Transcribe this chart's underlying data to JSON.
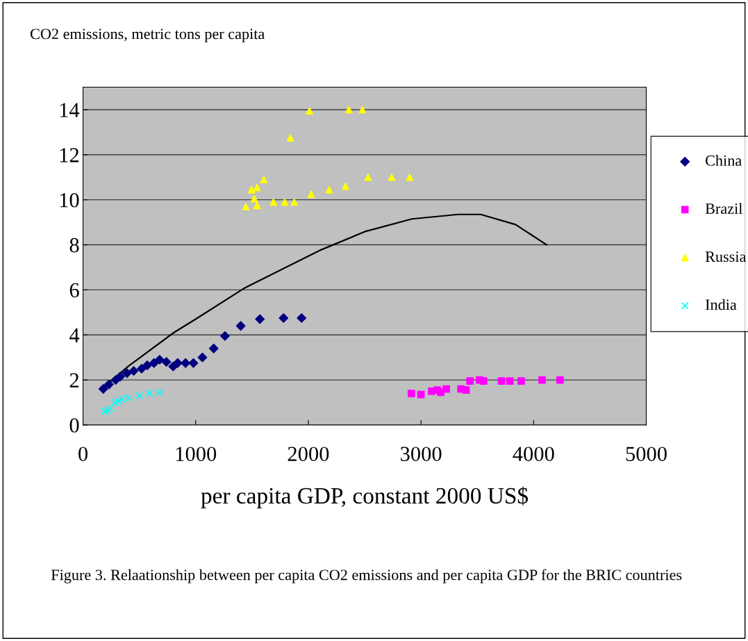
{
  "chart_data": {
    "type": "scatter",
    "ylabel": "CO2 emissions, metric tons per capita",
    "xlabel": "per capita GDP, constant 2000 US$",
    "annotations": [
      "Figure 3. Relaationship between per capita CO2 emissions and per capita GDP for the BRIC countries"
    ],
    "xlim": [
      0,
      5000
    ],
    "xticks": [
      0,
      1000,
      2000,
      3000,
      4000,
      5000
    ],
    "ylim": [
      0,
      15
    ],
    "yticks": [
      0,
      2,
      4,
      6,
      8,
      10,
      12,
      14
    ],
    "grid": "y",
    "legend": "right",
    "series": [
      {
        "name": "China",
        "color": "#000080",
        "marker": "diamond",
        "x": [
          180,
          230,
          290,
          330,
          390,
          450,
          520,
          570,
          630,
          680,
          740,
          800,
          840,
          910,
          980,
          1060,
          1160,
          1260,
          1400,
          1570,
          1780,
          1940
        ],
        "values": [
          1.6,
          1.8,
          2.0,
          2.15,
          2.3,
          2.4,
          2.5,
          2.65,
          2.75,
          2.9,
          2.8,
          2.6,
          2.75,
          2.75,
          2.75,
          3.0,
          3.4,
          3.95,
          4.4,
          4.7,
          4.75,
          4.75
        ]
      },
      {
        "name": "Brazil",
        "color": "#ff00ff",
        "marker": "square",
        "x": [
          2915,
          3000,
          3095,
          3145,
          3175,
          3225,
          3355,
          3400,
          3435,
          3520,
          3555,
          3715,
          3790,
          3890,
          4075,
          4235
        ],
        "values": [
          1.4,
          1.35,
          1.5,
          1.55,
          1.45,
          1.6,
          1.6,
          1.55,
          1.95,
          2.0,
          1.95,
          1.95,
          1.95,
          1.95,
          2.0,
          2.0
        ]
      },
      {
        "name": "Russia",
        "color": "#ffff00",
        "marker": "triangle",
        "x": [
          1445,
          1495,
          1520,
          1545,
          1545,
          1605,
          1690,
          1790,
          1840,
          1875,
          2010,
          2025,
          2185,
          2330,
          2360,
          2480,
          2530,
          2740,
          2900
        ],
        "values": [
          9.7,
          10.45,
          10.05,
          10.55,
          9.75,
          10.9,
          9.9,
          9.9,
          12.75,
          9.9,
          13.95,
          10.25,
          10.45,
          10.6,
          14.0,
          14.0,
          11.0,
          11.0,
          11.0
        ]
      },
      {
        "name": "India",
        "color": "#00ffff",
        "marker": "cross",
        "x": [
          190,
          220,
          240,
          285,
          315,
          345,
          405,
          500,
          590,
          680
        ],
        "values": [
          0.6,
          0.65,
          0.75,
          1.0,
          1.05,
          1.15,
          1.2,
          1.3,
          1.4,
          1.45
        ]
      },
      {
        "type": "line",
        "color": "#000000",
        "marker": "none",
        "x": [
          190,
          400,
          805,
          1000,
          1440,
          1800,
          2100,
          2510,
          2920,
          3330,
          3530,
          3840,
          4115
        ],
        "values": [
          1.7,
          2.6,
          4.1,
          4.7,
          6.1,
          7.0,
          7.75,
          8.6,
          9.15,
          9.35,
          9.35,
          8.9,
          8.0
        ]
      }
    ]
  }
}
